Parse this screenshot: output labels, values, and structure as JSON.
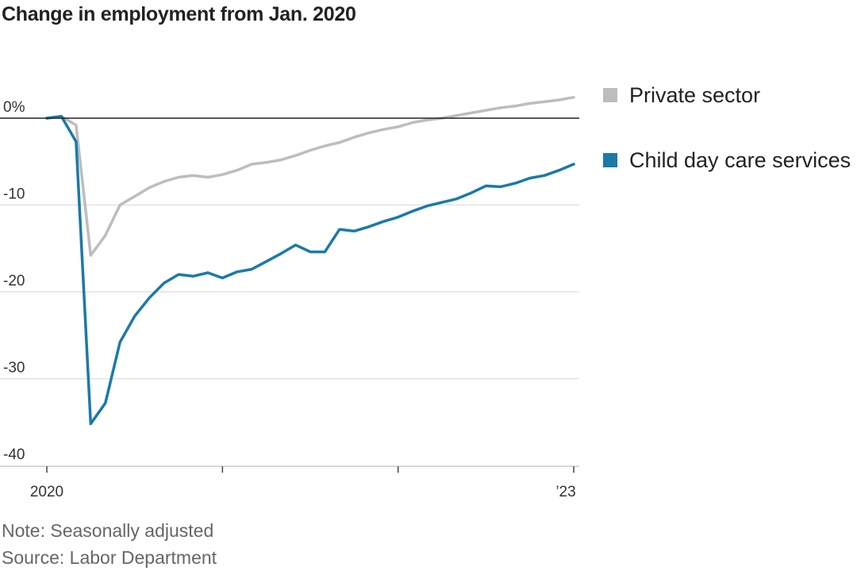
{
  "title": "Change in employment from Jan. 2020",
  "note": "Note: Seasonally adjusted",
  "source": "Source: Labor Department",
  "chart_data": {
    "type": "line",
    "title": "Change in employment from Jan. 2020",
    "xlabel": "",
    "ylabel": "",
    "x_tick_labels": [
      "2020",
      "’23"
    ],
    "y_tick_labels": [
      "0%",
      "-10",
      "-20",
      "-30",
      "-40"
    ],
    "y_ticks": [
      0,
      -10,
      -20,
      -30,
      -40
    ],
    "ylim": [
      -40,
      3
    ],
    "xlim": [
      0,
      36
    ],
    "grid": true,
    "legend_position": "right",
    "x": [
      0,
      1,
      2,
      3,
      4,
      5,
      6,
      7,
      8,
      9,
      10,
      11,
      12,
      13,
      14,
      15,
      16,
      17,
      18,
      19,
      20,
      21,
      22,
      23,
      24,
      25,
      26,
      27,
      28,
      29,
      30,
      31,
      32,
      33,
      34,
      35,
      36
    ],
    "series": [
      {
        "name": "Private sector",
        "color": "#bdbdbd",
        "values": [
          0,
          0.2,
          -0.8,
          -15.8,
          -13.5,
          -10,
          -9,
          -8,
          -7.3,
          -6.8,
          -6.6,
          -6.8,
          -6.5,
          -6,
          -5.3,
          -5.1,
          -4.8,
          -4.3,
          -3.7,
          -3.2,
          -2.8,
          -2.2,
          -1.7,
          -1.3,
          -1,
          -0.5,
          -0.2,
          0,
          0.3,
          0.6,
          0.9,
          1.2,
          1.4,
          1.7,
          1.9,
          2.1,
          2.4
        ]
      },
      {
        "name": "Child day care services",
        "color": "#1a7aa8",
        "values": [
          0,
          0.2,
          -2.7,
          -35.2,
          -32.8,
          -25.8,
          -22.8,
          -20.7,
          -19,
          -18,
          -18.2,
          -17.8,
          -18.4,
          -17.7,
          -17.4,
          -16.5,
          -15.6,
          -14.6,
          -15.4,
          -15.4,
          -12.8,
          -13,
          -12.5,
          -11.9,
          -11.4,
          -10.7,
          -10.1,
          -9.7,
          -9.3,
          -8.6,
          -7.8,
          -7.9,
          -7.5,
          -6.9,
          -6.6,
          -6,
          -5.3
        ]
      }
    ]
  }
}
